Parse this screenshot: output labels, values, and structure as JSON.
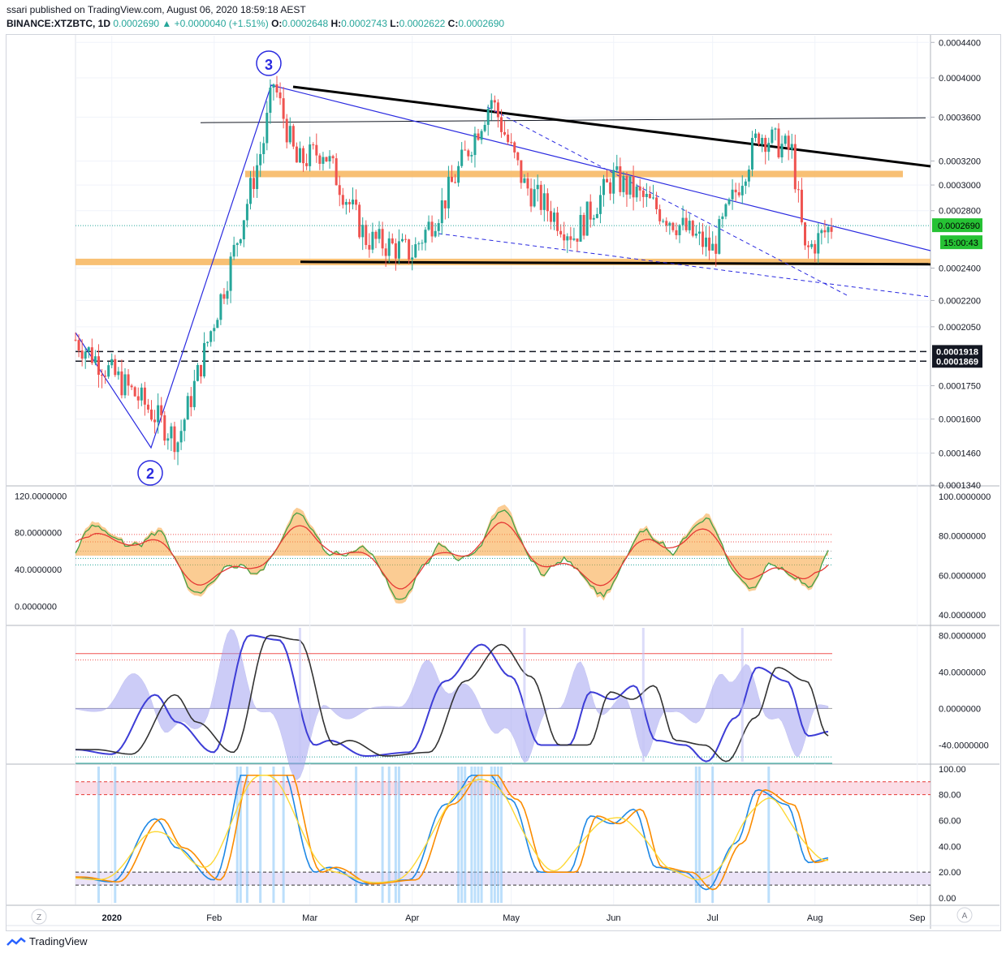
{
  "header": {
    "published": "ssari published on TradingView.com, August 06, 2020 18:59:18 AEST",
    "symbol": "BINANCE:XTZBTC, 1D",
    "last": "0.0002690",
    "change": "▲ +0.0000040 (+1.51%)",
    "o_label": "O:",
    "o": "0.0002648",
    "h_label": "H:",
    "h": "0.0002743",
    "l_label": "L:",
    "l": "0.0002622",
    "c_label": "C:",
    "c": "0.0002690"
  },
  "price_axis": [
    "0.0004400",
    "0.0004000",
    "0.0003600",
    "0.0003200",
    "0.0003000",
    "0.0002800",
    "0.0002400",
    "0.0002200",
    "0.0002050",
    "0.0001750",
    "0.0001600",
    "0.0001460",
    "0.0001340"
  ],
  "price_badges": {
    "current": "0.0002690",
    "countdown": "15:00:43",
    "level1": "0.0001918",
    "level2": "0.0001869"
  },
  "wave_labels": {
    "w2": "2",
    "w3": "3"
  },
  "osc1": {
    "left_axis": [
      "120.0000000",
      "80.0000000",
      "40.0000000",
      "0.0000000"
    ],
    "right_axis": [
      "100.0000000",
      "80.0000000",
      "60.0000000",
      "40.0000000"
    ]
  },
  "osc2": {
    "right_axis": [
      "80.0000000",
      "40.0000000",
      "0.0000000",
      "-40.0000000"
    ]
  },
  "osc3": {
    "right_axis": [
      "100.00",
      "80.00",
      "60.00",
      "40.00",
      "20.00",
      "0.00"
    ]
  },
  "time_axis": [
    "2020",
    "Feb",
    "Mar",
    "Apr",
    "May",
    "Jun",
    "Jul",
    "Aug",
    "Sep"
  ],
  "corner_buttons": {
    "left": "Z",
    "right": "A"
  },
  "brand": "TradingView",
  "colors": {
    "up": "#26a69a",
    "down": "#ef5350",
    "orange_zone": "#f7b55c",
    "trend_blue": "#2a2ae0",
    "pink_band": "#f8c7d5",
    "lavender_band": "#e6dcf5"
  },
  "chart_data": [
    {
      "type": "candlestick",
      "title": "BINANCE:XTZBTC, 1D",
      "ylim": [
        0.000134,
        0.000448
      ],
      "x_range": [
        "2019-12-21",
        "2020-09-05"
      ],
      "close_path": [
        [
          "2019-12-21",
          0.000198
        ],
        [
          "2020-01-10",
          0.000168
        ],
        [
          "2020-01-21",
          0.000151
        ],
        [
          "2020-02-05",
          0.000235
        ],
        [
          "2020-02-16",
          0.000338
        ],
        [
          "2020-02-19",
          0.000395
        ],
        [
          "2020-02-26",
          0.000318
        ],
        [
          "2020-03-05",
          0.00033
        ],
        [
          "2020-03-18",
          0.00026
        ],
        [
          "2020-04-01",
          0.00025
        ],
        [
          "2020-04-10",
          0.000284
        ],
        [
          "2020-04-25",
          0.000378
        ],
        [
          "2020-05-05",
          0.0003
        ],
        [
          "2020-05-20",
          0.000262
        ],
        [
          "2020-06-01",
          0.000306
        ],
        [
          "2020-06-15",
          0.00028
        ],
        [
          "2020-07-01",
          0.000252
        ],
        [
          "2020-07-15",
          0.000345
        ],
        [
          "2020-07-25",
          0.000328
        ],
        [
          "2020-07-29",
          0.00025
        ],
        [
          "2020-08-06",
          0.000269
        ]
      ],
      "horizontal_lines": [
        0.000357,
        0.000243,
        0.0001918,
        0.0001869
      ],
      "zones": [
        0.000309,
        0.000244
      ],
      "annotations": [
        "2",
        "3"
      ]
    },
    {
      "type": "line",
      "name": "oscillator-1",
      "ylim": [
        -20,
        130
      ]
    },
    {
      "type": "line",
      "name": "oscillator-2",
      "ylim": [
        -60,
        90
      ]
    },
    {
      "type": "line",
      "name": "stochastic",
      "ylim": [
        -5,
        103
      ],
      "bands": [
        [
          80,
          90
        ],
        [
          10,
          20
        ]
      ]
    }
  ]
}
